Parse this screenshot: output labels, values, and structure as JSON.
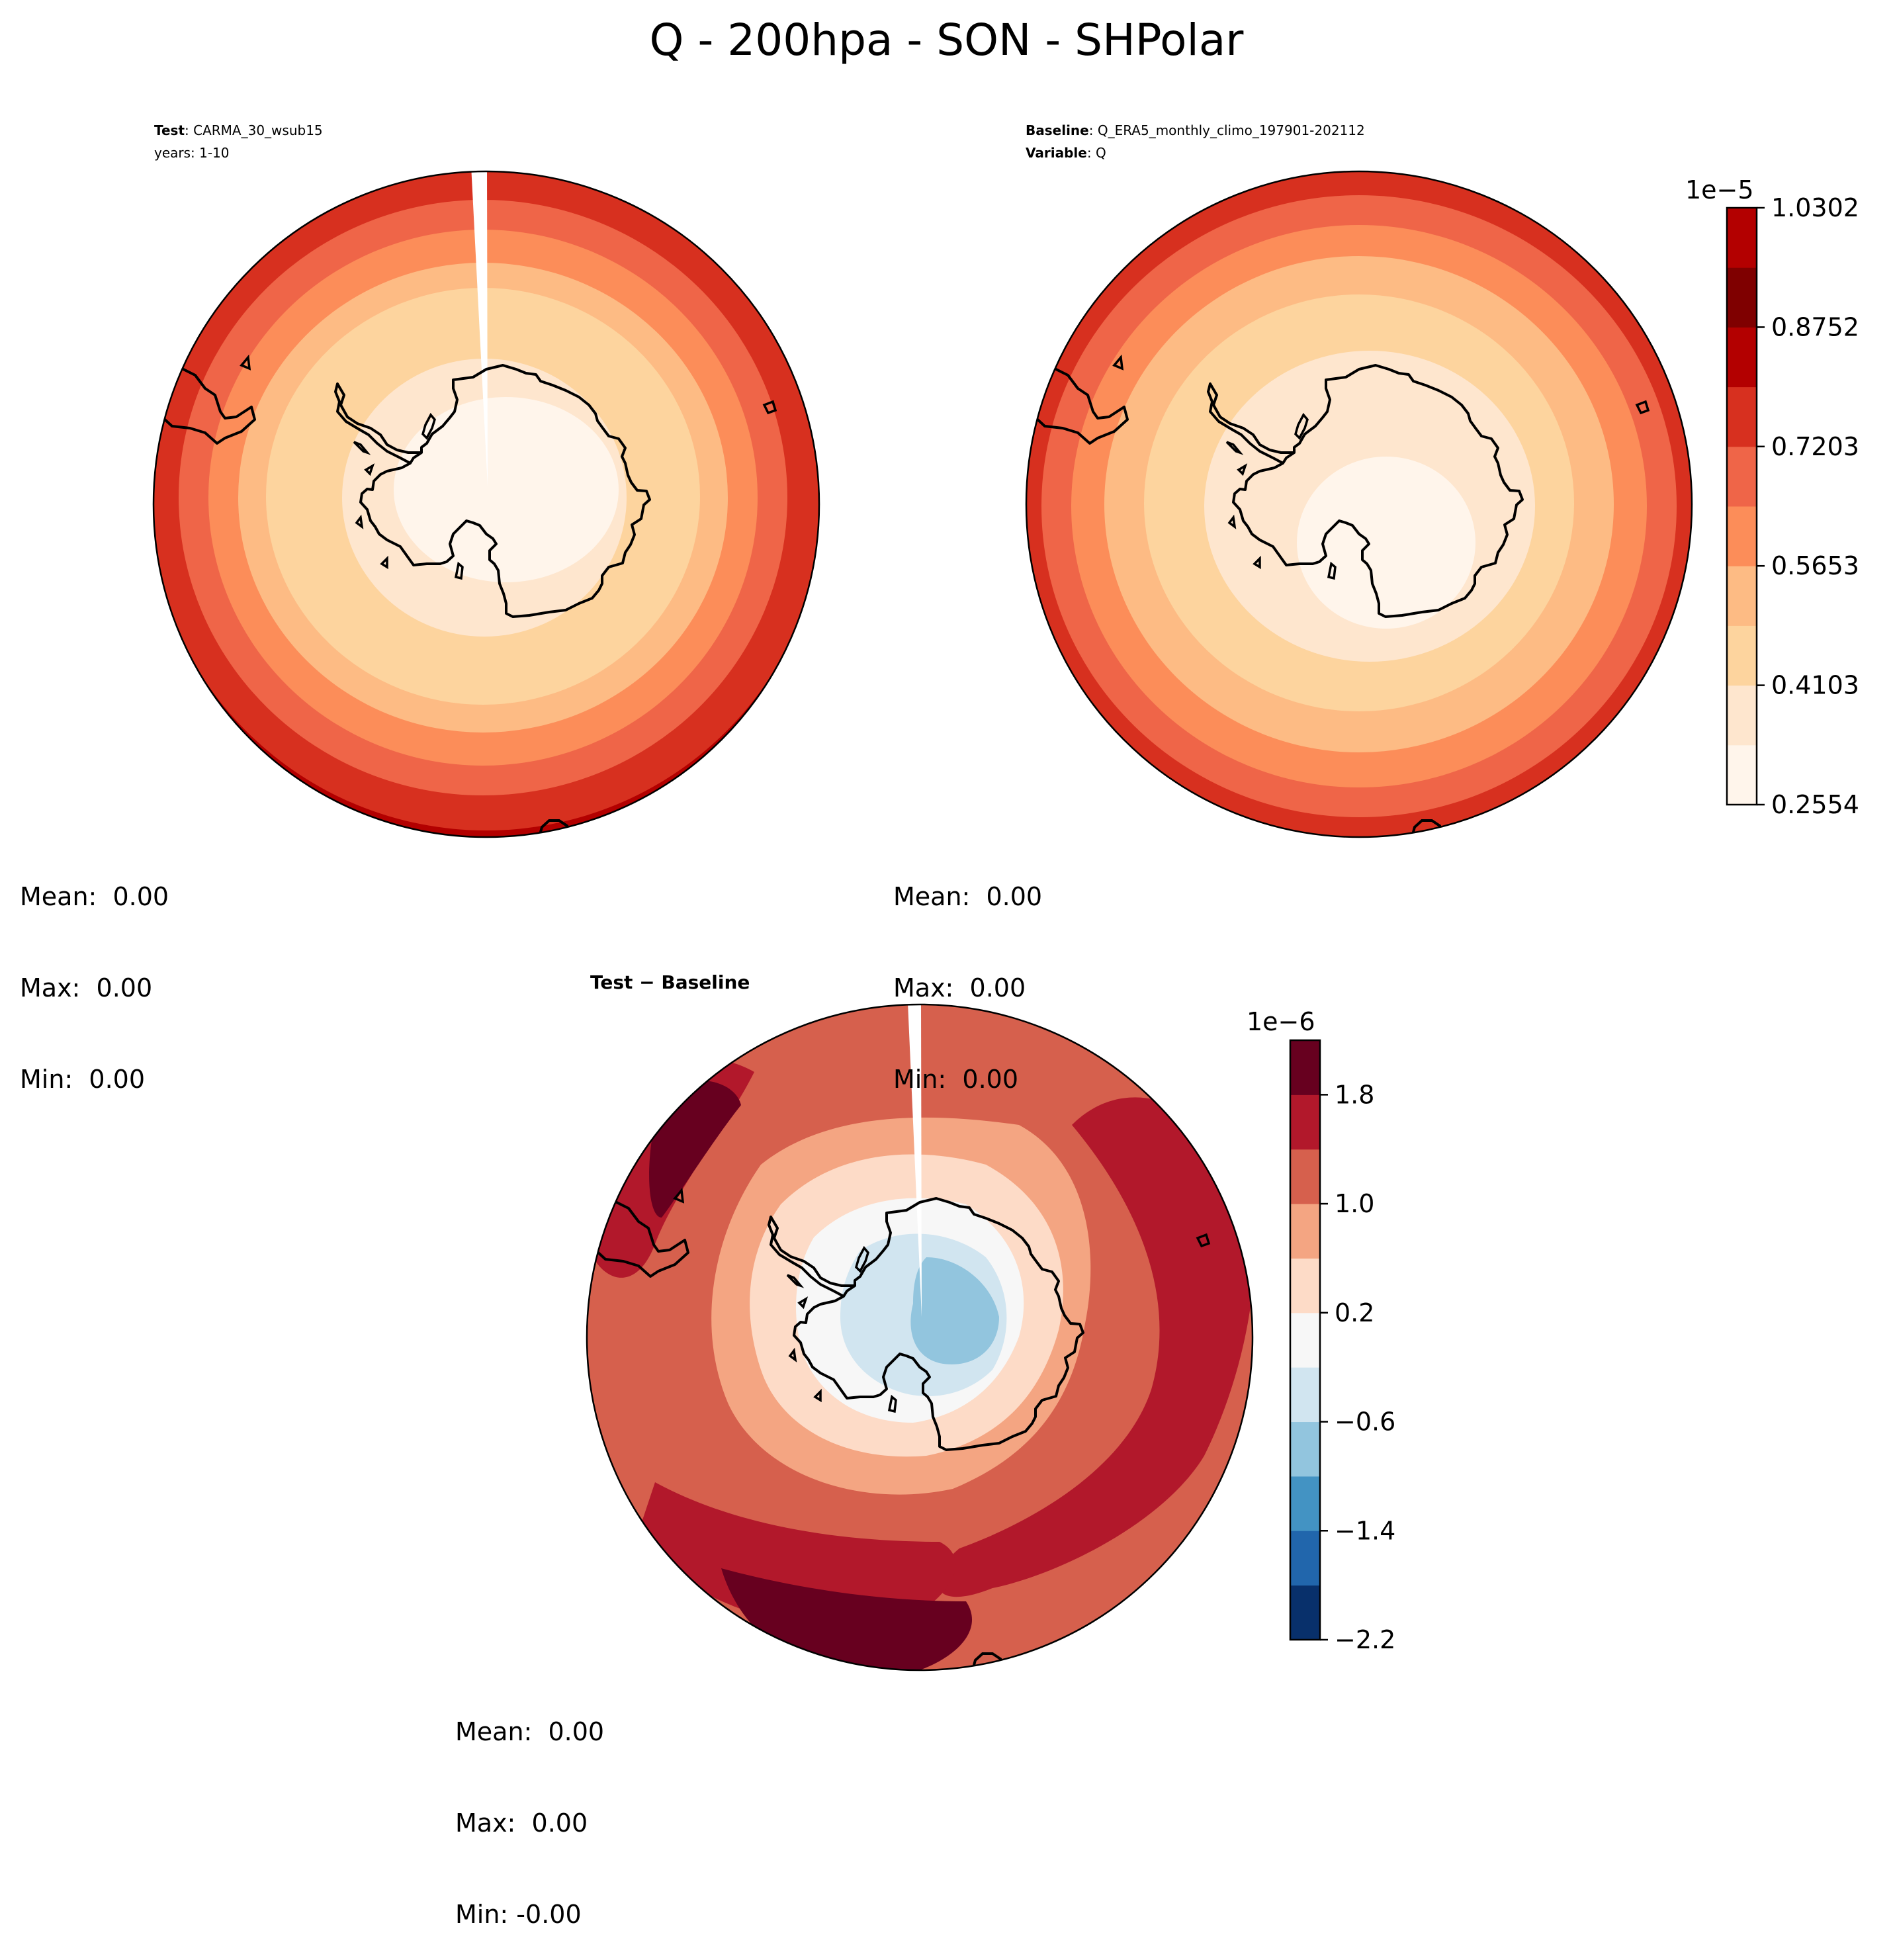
{
  "figure_title": "Q - 200hpa - SON - SHPolar",
  "panels": {
    "test": {
      "label_bold": "Test",
      "label_rest": ": CARMA_30_wsub15",
      "line2": "years: 1-10",
      "stats": {
        "mean": "Mean:  0.00",
        "max": "Max:  0.00",
        "min": "Min:  0.00"
      }
    },
    "baseline": {
      "label_bold": "Baseline",
      "label_rest": ": Q_ERA5_monthly_climo_197901-202112",
      "line2_bold": "Variable",
      "line2_rest": ": Q",
      "stats": {
        "mean": "Mean:  0.00",
        "max": "Max:  0.00",
        "min": "Min:  0.00"
      }
    },
    "diff": {
      "label": "Test − Baseline",
      "stats": {
        "mean": "Mean:  0.00",
        "max": "Max:  0.00",
        "min": "Min: -0.00"
      }
    }
  },
  "colorbars": {
    "main": {
      "exponent": "1e−5",
      "ticks": [
        "0.2554",
        "0.4103",
        "0.5653",
        "0.7203",
        "0.8752",
        "1.0302"
      ],
      "colors": [
        "#fff5eb",
        "#fee6ce",
        "#fdd49e",
        "#fdbb84",
        "#fc8d59",
        "#ef6548",
        "#d7301f",
        "#b30000",
        "#7f0000",
        "#b30000"
      ]
    },
    "diff": {
      "exponent": "1e−6",
      "ticks": [
        "−2.2",
        "−1.4",
        "−0.6",
        "0.2",
        "1.0",
        "1.8"
      ],
      "colors": [
        "#08306b",
        "#2166ac",
        "#4393c3",
        "#92c5de",
        "#d1e5f0",
        "#f7f7f7",
        "#fddbc7",
        "#f4a582",
        "#d6604d",
        "#b2182b",
        "#67001f"
      ]
    }
  },
  "chart_data": [
    {
      "type": "heatmap",
      "title": "Test: CARMA_30_wsub15",
      "projection": "South polar stereographic",
      "units_exponent": "1e-5",
      "levels": [
        0.2554,
        0.4103,
        0.5653,
        0.7203,
        0.8752,
        1.0302
      ],
      "mean": "0.00",
      "max": "0.00",
      "min": "0.00"
    },
    {
      "type": "heatmap",
      "title": "Baseline: Q_ERA5_monthly_climo_197901-202112",
      "projection": "South polar stereographic",
      "units_exponent": "1e-5",
      "levels": [
        0.2554,
        0.4103,
        0.5653,
        0.7203,
        0.8752,
        1.0302
      ],
      "mean": "0.00",
      "max": "0.00",
      "min": "0.00"
    },
    {
      "type": "heatmap",
      "title": "Test − Baseline",
      "projection": "South polar stereographic",
      "units_exponent": "1e-6",
      "levels": [
        -2.2,
        -1.4,
        -0.6,
        0.2,
        1.0,
        1.8
      ],
      "mean": "0.00",
      "max": "0.00",
      "min": "-0.00"
    }
  ]
}
